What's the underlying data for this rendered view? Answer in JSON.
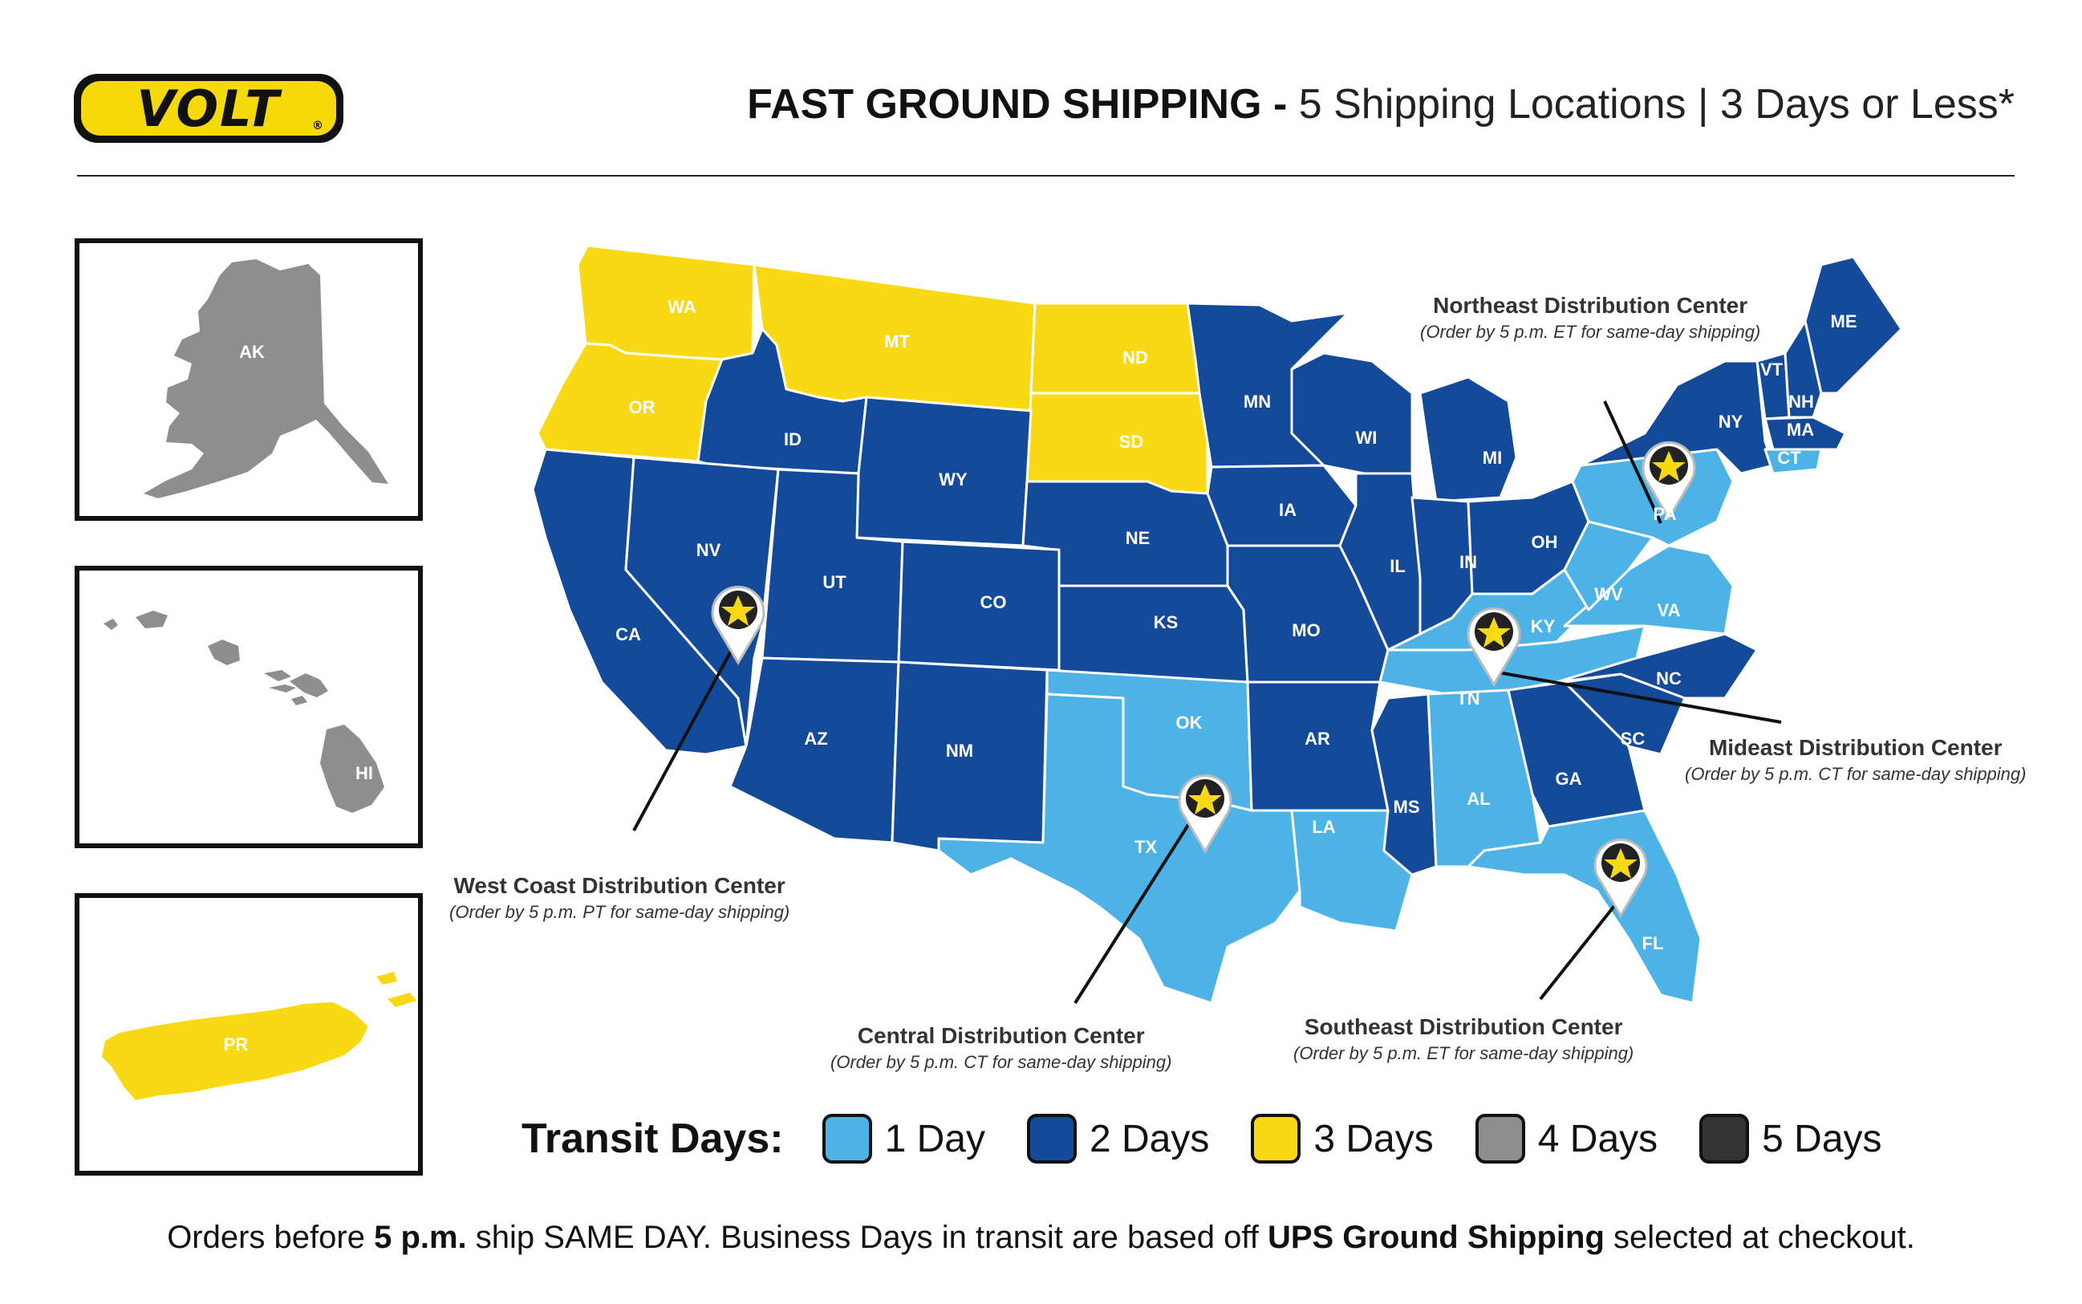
{
  "brand": {
    "logo_text": "VOLT",
    "registered": "®"
  },
  "header": {
    "bold": "FAST GROUND SHIPPING -",
    "light": "5 Shipping Locations | 3 Days or Less*"
  },
  "insets": [
    {
      "id": "AK",
      "label": "AK",
      "transit_days": 4
    },
    {
      "id": "HI",
      "label": "HI",
      "transit_days": 4
    },
    {
      "id": "PR",
      "label": "PR",
      "transit_days": 3
    }
  ],
  "states": [
    {
      "label": "WA",
      "transit_days": 3
    },
    {
      "label": "OR",
      "transit_days": 3
    },
    {
      "label": "MT",
      "transit_days": 3
    },
    {
      "label": "ND",
      "transit_days": 3
    },
    {
      "label": "SD",
      "transit_days": 3
    },
    {
      "label": "ID",
      "transit_days": 2
    },
    {
      "label": "WY",
      "transit_days": 2
    },
    {
      "label": "NE",
      "transit_days": 2
    },
    {
      "label": "CA",
      "transit_days": 2
    },
    {
      "label": "NV",
      "transit_days": 2
    },
    {
      "label": "UT",
      "transit_days": 2
    },
    {
      "label": "CO",
      "transit_days": 2
    },
    {
      "label": "AZ",
      "transit_days": 2
    },
    {
      "label": "NM",
      "transit_days": 2
    },
    {
      "label": "KS",
      "transit_days": 2
    },
    {
      "label": "OK",
      "transit_days": 1
    },
    {
      "label": "TX",
      "transit_days": 1
    },
    {
      "label": "MN",
      "transit_days": 2
    },
    {
      "label": "IA",
      "transit_days": 2
    },
    {
      "label": "MO",
      "transit_days": 2
    },
    {
      "label": "AR",
      "transit_days": 2
    },
    {
      "label": "LA",
      "transit_days": 1
    },
    {
      "label": "WI",
      "transit_days": 2
    },
    {
      "label": "IL",
      "transit_days": 2
    },
    {
      "label": "MI",
      "transit_days": 2
    },
    {
      "label": "IN",
      "transit_days": 2
    },
    {
      "label": "OH",
      "transit_days": 2
    },
    {
      "label": "KY",
      "transit_days": 1
    },
    {
      "label": "TN",
      "transit_days": 1
    },
    {
      "label": "MS",
      "transit_days": 2
    },
    {
      "label": "AL",
      "transit_days": 1
    },
    {
      "label": "GA",
      "transit_days": 2
    },
    {
      "label": "FL",
      "transit_days": 1
    },
    {
      "label": "SC",
      "transit_days": 2
    },
    {
      "label": "NC",
      "transit_days": 2
    },
    {
      "label": "VA",
      "transit_days": 1
    },
    {
      "label": "WV",
      "transit_days": 1
    },
    {
      "label": "PA",
      "transit_days": 1
    },
    {
      "label": "NY",
      "transit_days": 2
    },
    {
      "label": "VT",
      "transit_days": 2
    },
    {
      "label": "NH",
      "transit_days": 2
    },
    {
      "label": "ME",
      "transit_days": 2
    },
    {
      "label": "MA",
      "transit_days": 2
    },
    {
      "label": "CT",
      "transit_days": 1
    }
  ],
  "distribution_centers": [
    {
      "name": "West Coast Distribution Center",
      "note": "(Order by 5 p.m. PT for same-day shipping)"
    },
    {
      "name": "Central Distribution Center",
      "note": "(Order by 5 p.m. CT for same-day shipping)"
    },
    {
      "name": "Southeast Distribution Center",
      "note": "(Order by 5 p.m. ET for same-day shipping)"
    },
    {
      "name": "Mideast Distribution Center",
      "note": "(Order by 5 p.m. CT for same-day shipping)"
    },
    {
      "name": "Northeast Distribution Center",
      "note": "(Order by 5 p.m. ET for same-day shipping)"
    }
  ],
  "legend": {
    "title": "Transit Days:",
    "items": [
      {
        "label": "1 Day",
        "color": "#4db3e6"
      },
      {
        "label": "2 Days",
        "color": "#134b9a"
      },
      {
        "label": "3 Days",
        "color": "#f9d814"
      },
      {
        "label": "4 Days",
        "color": "#8e8e8e"
      },
      {
        "label": "5 Days",
        "color": "#333333"
      }
    ]
  },
  "footer": {
    "p1": "Orders before ",
    "b1": "5 p.m.",
    "p2": " ship SAME DAY. Business Days in transit are based off ",
    "b2": "UPS Ground Shipping",
    "p3": " selected at checkout."
  }
}
